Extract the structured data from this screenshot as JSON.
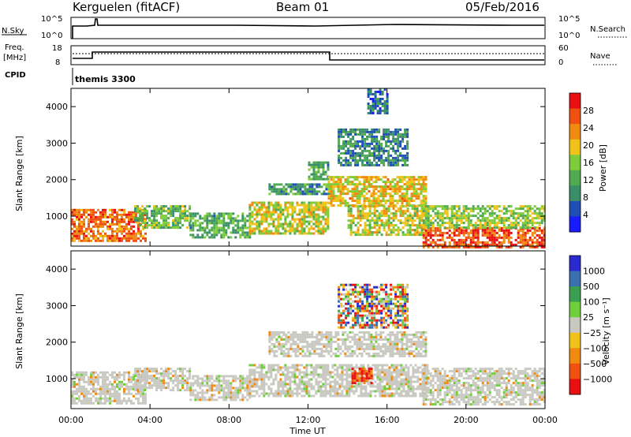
{
  "header": {
    "station": "Kerguelen (fitACF)",
    "beam": "Beam 01",
    "date": "05/Feb/2016"
  },
  "panels": {
    "nsky": {
      "left_label": "N.Sky",
      "left_ticks": [
        "10^5",
        "10^0"
      ],
      "right_label": "N.Search",
      "right_ticks": [
        "10^5",
        "10^0"
      ]
    },
    "freq": {
      "left_label_1": "Freq.",
      "left_label_2": "[MHz]",
      "left_ticks": [
        "18",
        "8"
      ],
      "right_label": "Nave",
      "right_ticks": [
        "60",
        "0"
      ]
    },
    "cpid": {
      "label": "CPID",
      "text": "themis 3300"
    }
  },
  "colors": {
    "power": [
      "#1a1aff",
      "#1f4fb5",
      "#3a8f6a",
      "#4faa50",
      "#7fcc3a",
      "#f0c21a",
      "#f08a10",
      "#f05010",
      "#e81010"
    ],
    "velocity": [
      "#e81010",
      "#f05010",
      "#f08a10",
      "#f0c21a",
      "#c9c9c2",
      "#6fcf3a",
      "#3a9f50",
      "#3a70b0",
      "#2a2ad0"
    ],
    "ground_scatter": "#c9c9c2"
  },
  "chart_data": [
    {
      "type": "heatmap",
      "name_key": "power",
      "xlabel": "",
      "ylabel": "Slant Range [km]",
      "x_ticks": [
        "00:00",
        "04:00",
        "08:00",
        "12:00",
        "16:00",
        "20:00",
        "00:00"
      ],
      "y_ticks": [
        "1000",
        "2000",
        "3000",
        "4000"
      ],
      "ylim": [
        180,
        4500
      ],
      "xlim_hours": [
        0,
        24
      ],
      "colorbar_label": "Power [dB]",
      "colorbar_ticks": [
        "4",
        "8",
        "12",
        "16",
        "20",
        "24",
        "28"
      ],
      "colorbar_range": [
        0,
        32
      ],
      "regions": [
        {
          "t": [
            0.0,
            3.8
          ],
          "r": [
            300,
            1200
          ],
          "level": 25
        },
        {
          "t": [
            3.2,
            6.0
          ],
          "r": [
            700,
            1300
          ],
          "level": 14
        },
        {
          "t": [
            6.0,
            9.0
          ],
          "r": [
            400,
            1100
          ],
          "level": 12
        },
        {
          "t": [
            9.0,
            13.0
          ],
          "r": [
            500,
            1400
          ],
          "level": 18
        },
        {
          "t": [
            10.0,
            13.0
          ],
          "r": [
            1600,
            1900
          ],
          "level": 10
        },
        {
          "t": [
            12.0,
            13.0
          ],
          "r": [
            2000,
            2500
          ],
          "level": 12
        },
        {
          "t": [
            13.0,
            18.0
          ],
          "r": [
            1300,
            2100
          ],
          "level": 20
        },
        {
          "t": [
            14.0,
            18.0
          ],
          "r": [
            500,
            1300
          ],
          "level": 18
        },
        {
          "t": [
            13.5,
            17.0
          ],
          "r": [
            2400,
            3400
          ],
          "level": 9
        },
        {
          "t": [
            17.8,
            24.0
          ],
          "r": [
            180,
            700
          ],
          "level": 27
        },
        {
          "t": [
            17.8,
            24.0
          ],
          "r": [
            700,
            1300
          ],
          "level": 16
        },
        {
          "t": [
            15.0,
            16.0
          ],
          "r": [
            3800,
            4500
          ],
          "level": 7
        }
      ]
    },
    {
      "type": "heatmap",
      "name_key": "velocity",
      "xlabel": "Time UT",
      "ylabel": "Slant Range [km]",
      "x_ticks": [
        "00:00",
        "04:00",
        "08:00",
        "12:00",
        "16:00",
        "20:00",
        "00:00"
      ],
      "y_ticks": [
        "1000",
        "2000",
        "3000",
        "4000"
      ],
      "ylim": [
        180,
        4500
      ],
      "xlim_hours": [
        0,
        24
      ],
      "colorbar_label": "Velocity [m s⁻¹]",
      "colorbar_ticks": [
        "1000",
        "500",
        "100",
        "25",
        "−25",
        "−100",
        "−500",
        "−1000"
      ],
      "regions": [
        {
          "t": [
            0.0,
            3.8
          ],
          "r": [
            300,
            1200
          ],
          "level": "ground"
        },
        {
          "t": [
            3.2,
            6.0
          ],
          "r": [
            700,
            1300
          ],
          "level": "ground"
        },
        {
          "t": [
            6.0,
            9.0
          ],
          "r": [
            400,
            1100
          ],
          "level": "ground"
        },
        {
          "t": [
            9.0,
            18.0
          ],
          "r": [
            500,
            1400
          ],
          "level": "ground"
        },
        {
          "t": [
            10.0,
            18.0
          ],
          "r": [
            1600,
            2300
          ],
          "level": "ground"
        },
        {
          "t": [
            17.8,
            24.0
          ],
          "r": [
            300,
            1300
          ],
          "level": "ground"
        },
        {
          "t": [
            14.2,
            15.2
          ],
          "r": [
            900,
            1300
          ],
          "level": "negative"
        },
        {
          "t": [
            13.5,
            17.0
          ],
          "r": [
            2400,
            3600
          ],
          "level": "mixed"
        }
      ]
    }
  ]
}
